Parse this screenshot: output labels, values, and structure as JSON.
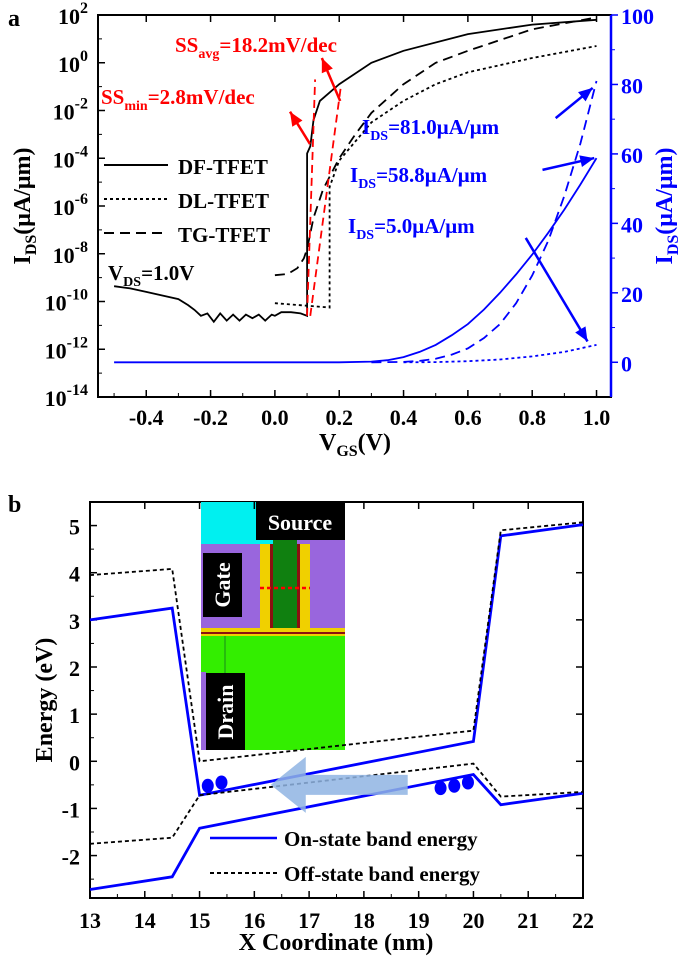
{
  "chart_data": [
    {
      "panel_label": "a",
      "type": "line",
      "xlabel": {
        "main": "V",
        "sub": "GS",
        "tail": "(V)"
      },
      "ylabel_left": {
        "main": "I",
        "sub": "DS",
        "tail": "(μA/μm)"
      },
      "ylabel_right": {
        "main": "I",
        "sub": "DS",
        "tail": "(μA/μm)"
      },
      "xlim": [
        -0.55,
        1.045
      ],
      "ylim_left_log10": [
        -14,
        2
      ],
      "ylim_right": [
        -10,
        100
      ],
      "y_left_scale": "log",
      "x_ticks": [
        "-0.4",
        "-0.2",
        "0.0",
        "0.2",
        "0.4",
        "0.6",
        "0.8",
        "1.0"
      ],
      "y_left_ticks": [
        {
          "base": "10",
          "exp": "2"
        },
        {
          "base": "10",
          "exp": "0"
        },
        {
          "base": "10",
          "exp": "-2"
        },
        {
          "base": "10",
          "exp": "-4"
        },
        {
          "base": "10",
          "exp": "-6"
        },
        {
          "base": "10",
          "exp": "-8"
        },
        {
          "base": "10",
          "exp": "-10"
        },
        {
          "base": "10",
          "exp": "-12"
        },
        {
          "base": "10",
          "exp": "-14"
        }
      ],
      "y_right_ticks": [
        "0",
        "20",
        "40",
        "60",
        "80",
        "100"
      ],
      "legend": {
        "placement": "left",
        "entries": [
          "DF-TFET",
          "DL-TFET",
          "TG-TFET"
        ]
      },
      "condition": {
        "main": "V",
        "sub": "DS",
        "tail": "=1.0V"
      },
      "colors": {
        "log_axis": "#000000",
        "linear_axis": "#0000ff",
        "ss": "#ff0000"
      },
      "series_log": [
        {
          "name": "DF-TFET",
          "style": "solid",
          "x": [
            -0.5,
            -0.45,
            -0.4,
            -0.35,
            -0.3,
            -0.27,
            -0.25,
            -0.23,
            -0.21,
            -0.19,
            -0.17,
            -0.15,
            -0.13,
            -0.11,
            -0.09,
            -0.07,
            -0.05,
            -0.03,
            -0.01,
            0.0,
            0.02,
            0.05,
            0.08,
            0.1,
            0.1,
            0.11,
            0.12,
            0.14,
            0.2,
            0.3,
            0.4,
            0.6,
            0.8,
            1.0
          ],
          "log10_y": [
            -9.36,
            -9.45,
            -9.6,
            -9.75,
            -9.9,
            -10.15,
            -10.35,
            -10.6,
            -10.5,
            -10.85,
            -10.5,
            -10.8,
            -10.55,
            -10.8,
            -10.55,
            -10.7,
            -10.55,
            -10.8,
            -10.55,
            -10.6,
            -10.45,
            -10.45,
            -10.5,
            -10.6,
            -3.8,
            -3.5,
            -2.4,
            -1.6,
            -0.9,
            0.0,
            0.5,
            1.2,
            1.6,
            1.8
          ]
        },
        {
          "name": "DL-TFET",
          "style": "dotted",
          "x": [
            0.0,
            0.17,
            0.17,
            0.2,
            0.25,
            0.3,
            0.4,
            0.5,
            0.6,
            0.8,
            1.0
          ],
          "log10_y": [
            -10.07,
            -10.25,
            -5.2,
            -4.1,
            -3.3,
            -2.5,
            -1.6,
            -0.9,
            -0.4,
            0.2,
            0.7
          ]
        },
        {
          "name": "TG-TFET",
          "style": "dashed",
          "x": [
            0.0,
            0.04,
            0.07,
            0.09,
            0.1,
            0.12,
            0.15,
            0.2,
            0.25,
            0.3,
            0.4,
            0.5,
            0.6,
            0.8,
            1.0
          ],
          "log10_y": [
            -8.9,
            -8.85,
            -8.6,
            -8.2,
            -7.8,
            -6.5,
            -5.3,
            -4.0,
            -3.0,
            -2.1,
            -0.9,
            0.0,
            0.5,
            1.4,
            1.9
          ]
        }
      ],
      "series_linear": [
        {
          "name": "DF-TFET",
          "style": "solid",
          "x": [
            -0.5,
            0.2,
            0.3,
            0.35,
            0.4,
            0.45,
            0.5,
            0.55,
            0.6,
            0.65,
            0.7,
            0.75,
            0.8,
            0.85,
            0.9,
            0.95,
            1.0
          ],
          "y": [
            0,
            0,
            0.2,
            0.6,
            1.5,
            3,
            5,
            7.8,
            11,
            15.2,
            20,
            25.3,
            31,
            37.3,
            44,
            51.2,
            58.8
          ]
        },
        {
          "name": "DL-TFET",
          "style": "dotted",
          "x": [
            0.4,
            0.5,
            0.6,
            0.7,
            0.8,
            0.9,
            1.0
          ],
          "y": [
            0,
            0.05,
            0.3,
            0.8,
            1.7,
            3.0,
            5.0
          ]
        },
        {
          "name": "TG-TFET",
          "style": "dashed",
          "x": [
            0.3,
            0.4,
            0.45,
            0.5,
            0.55,
            0.6,
            0.65,
            0.7,
            0.75,
            0.8,
            0.85,
            0.9,
            0.95,
            1.0
          ],
          "y": [
            0,
            0.1,
            0.4,
            1,
            2.2,
            4,
            7,
            11,
            17,
            25,
            35,
            48,
            63,
            81
          ]
        }
      ],
      "ss_lines": [
        {
          "x": [
            0.1,
            0.125
          ],
          "log10_y": [
            -10.6,
            -0.7
          ]
        },
        {
          "x": [
            0.11,
            0.205
          ],
          "log10_y": [
            -10.6,
            -1.0
          ]
        }
      ],
      "annotations": [
        {
          "main": "SS",
          "sub": "avg",
          "tail": "=18.2mV/dec",
          "color": "#ff0000"
        },
        {
          "main": "SS",
          "sub": "min",
          "tail": "=2.8mV/dec",
          "color": "#ff0000"
        },
        {
          "main": "I",
          "sub": "DS",
          "tail": "=81.0μA/μm",
          "color": "#0000ff"
        },
        {
          "main": "I",
          "sub": "DS",
          "tail": "=58.8μA/μm",
          "color": "#0000ff"
        },
        {
          "main": "I",
          "sub": "DS",
          "tail": "=5.0μA/μm",
          "color": "#0000ff"
        }
      ],
      "arrows": [
        {
          "axis": "left",
          "from": [
            0.109,
            -3.4
          ],
          "to": [
            0.047,
            -2.05
          ]
        },
        {
          "axis": "left",
          "from": [
            0.203,
            -1.6
          ],
          "to": [
            0.146,
            0.2
          ]
        },
        {
          "axis": "right",
          "from": [
            0.873,
            70.3
          ],
          "to": [
            0.988,
            79.0
          ]
        },
        {
          "axis": "right",
          "from": [
            0.832,
            55.4
          ],
          "to": [
            0.993,
            58.8
          ]
        },
        {
          "axis": "right",
          "from": [
            0.78,
            35.8
          ],
          "to": [
            0.972,
            6.0
          ]
        }
      ]
    },
    {
      "panel_label": "b",
      "type": "line",
      "xlabel": "X Coordinate (nm)",
      "ylabel": "Energy (eV)",
      "xlim": [
        13,
        22
      ],
      "ylim": [
        -2.9,
        5.5
      ],
      "x_ticks": [
        "13",
        "14",
        "15",
        "16",
        "17",
        "18",
        "19",
        "20",
        "21",
        "22"
      ],
      "y_ticks": [
        "-2",
        "-1",
        "0",
        "1",
        "2",
        "3",
        "4",
        "5"
      ],
      "legend": {
        "placement": "bottom-right",
        "entries": [
          "On-state band energy",
          "Off-state band energy"
        ]
      },
      "colors": {
        "on": "#0000ff",
        "off": "#000000",
        "electron": "#0000ff",
        "arrow": "#8fb4e3"
      },
      "series": [
        {
          "name": "On-state band energy",
          "band": "conduction",
          "style": "solid",
          "x": [
            13,
            14.5,
            15,
            20,
            20.5,
            22
          ],
          "y": [
            3.0,
            3.25,
            -0.72,
            0.42,
            4.78,
            5.02
          ]
        },
        {
          "name": "On-state band energy",
          "band": "valence",
          "style": "solid",
          "x": [
            13,
            14.5,
            15,
            20,
            20.5,
            22
          ],
          "y": [
            -2.72,
            -2.45,
            -1.42,
            -0.28,
            -0.92,
            -0.68
          ]
        },
        {
          "name": "Off-state band energy",
          "band": "conduction",
          "style": "dashed",
          "x": [
            13,
            14.5,
            15,
            20,
            20.5,
            22
          ],
          "y": [
            3.95,
            4.08,
            0.0,
            0.65,
            4.9,
            5.07
          ]
        },
        {
          "name": "Off-state band energy",
          "band": "valence",
          "style": "dashed",
          "x": [
            13,
            14.5,
            15,
            20,
            20.5,
            22
          ],
          "y": [
            -1.75,
            -1.62,
            -0.72,
            -0.05,
            -0.75,
            -0.65
          ]
        }
      ],
      "electrons": {
        "x": [
          15.15,
          15.4,
          19.4,
          19.65,
          19.9
        ],
        "y": [
          -0.52,
          -0.45,
          -0.57,
          -0.52,
          -0.45
        ]
      },
      "tunneling_arrow": {
        "from": [
          18.8,
          -0.5
        ],
        "to": [
          16.3,
          -0.5
        ]
      },
      "inset": {
        "labels": {
          "source": "Source",
          "gate": "Gate",
          "drain": "Drain"
        },
        "colors": {
          "source": "#00f0f0",
          "gate": "#9966dd",
          "oxide": "#f0d000",
          "channel": "#108010",
          "drain": "#33ee00",
          "cut": "#ff0000"
        }
      }
    }
  ]
}
